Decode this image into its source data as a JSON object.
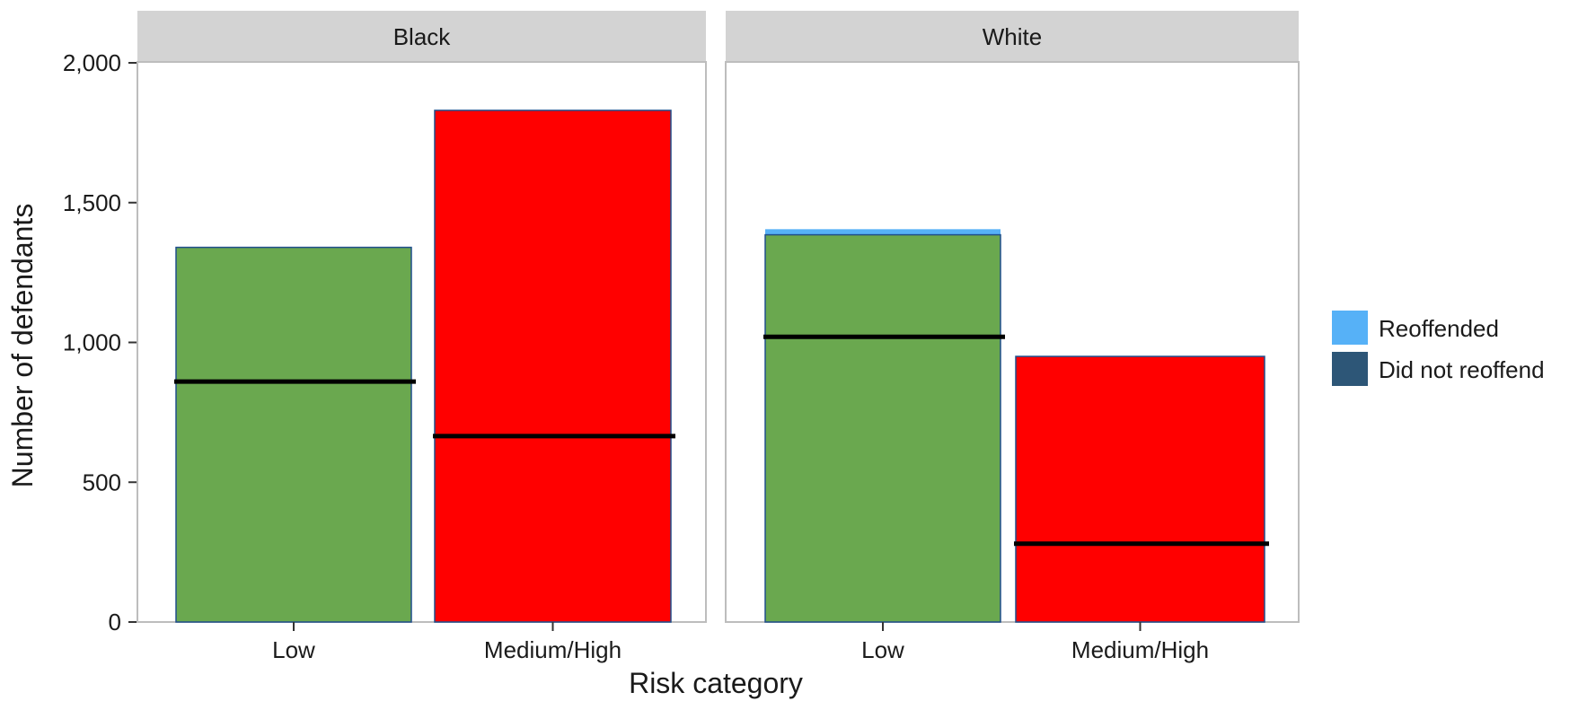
{
  "chart_data": {
    "type": "bar",
    "ylabel": "Number of defendants",
    "xlabel": "Risk category",
    "ylim": [
      0,
      2000
    ],
    "yticks": [
      0,
      500,
      1000,
      1500,
      2000
    ],
    "ytick_labels": [
      "0",
      "500",
      "1,000",
      "1,500",
      "2,000"
    ],
    "categories": [
      "Low",
      "Medium/High"
    ],
    "grid": false,
    "legend_position": "right",
    "legend": [
      {
        "label": "Reoffended",
        "color": "#56b1f7"
      },
      {
        "label": "Did not reoffend",
        "color": "#2d5677"
      }
    ],
    "bar_colors": {
      "Low": "#6aa84f",
      "Medium/High": "#ff0000"
    },
    "panels": [
      {
        "name": "Black",
        "bars": [
          {
            "category": "Low",
            "total": 1340,
            "did_not_reoffend": 860
          },
          {
            "category": "Medium/High",
            "total": 1830,
            "did_not_reoffend": 665
          }
        ]
      },
      {
        "name": "White",
        "bars": [
          {
            "category": "Low",
            "total": 1385,
            "reoffended_top": 1405,
            "did_not_reoffend": 1020
          },
          {
            "category": "Medium/High",
            "total": 950,
            "did_not_reoffend": 280
          }
        ]
      }
    ]
  }
}
